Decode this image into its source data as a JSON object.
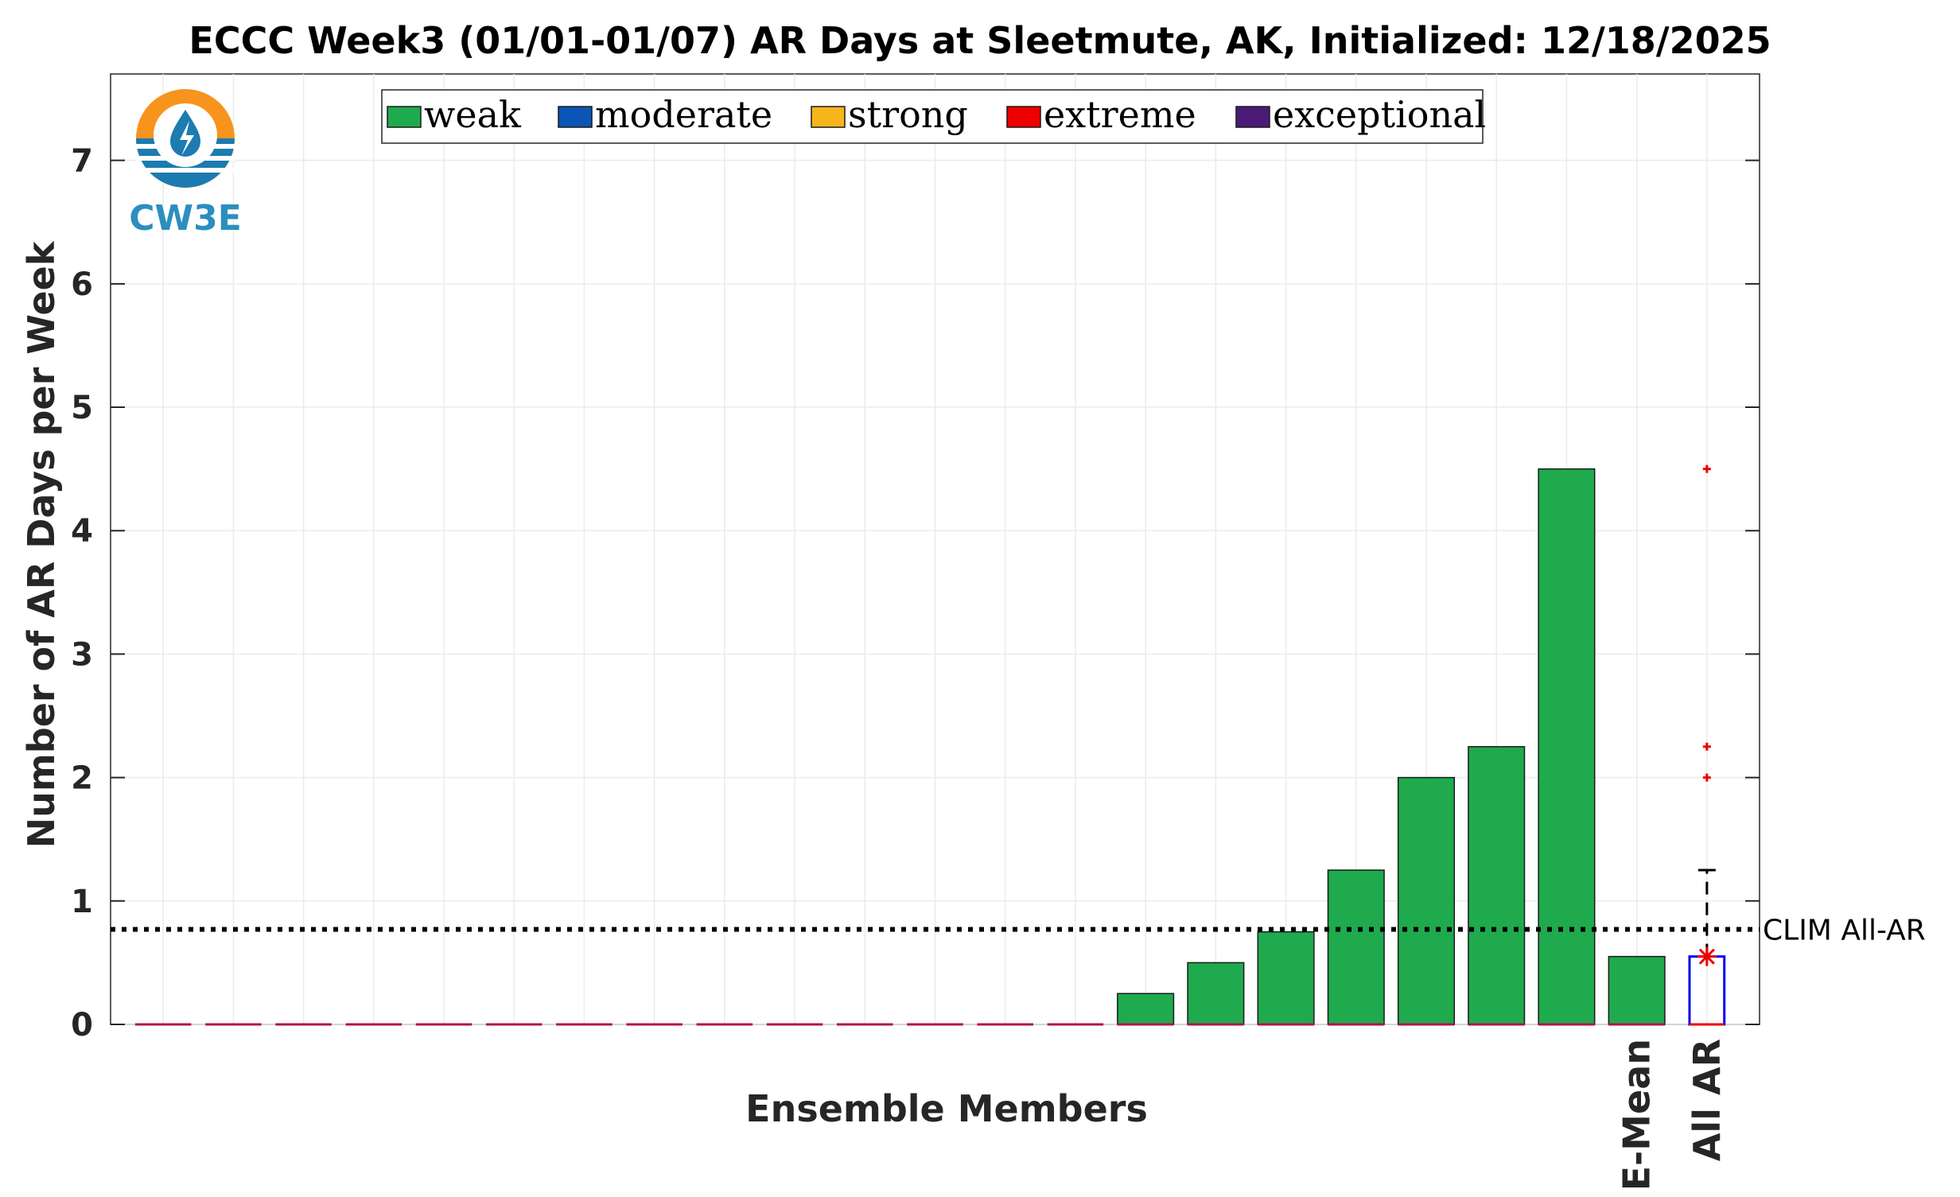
{
  "logo": {
    "text": "CW3E",
    "ring_color": "#f7941d",
    "wave_color": "#1c7bb0"
  },
  "chart_data": {
    "type": "bar",
    "title": "ECCC Week3 (01/01-01/07) AR Days at Sleetmute, AK, Initialized: 12/18/2025",
    "xlabel": "Ensemble Members",
    "ylabel": "Number of AR Days per Week",
    "ylim": [
      0,
      7.7
    ],
    "yticks": [
      0,
      1,
      2,
      3,
      4,
      5,
      6,
      7
    ],
    "grid": true,
    "legend_position": "top",
    "legend": [
      {
        "name": "weak",
        "color": "#1faa4e"
      },
      {
        "name": "moderate",
        "color": "#0a55b5"
      },
      {
        "name": "strong",
        "color": "#f6b51b"
      },
      {
        "name": "extreme",
        "color": "#ee0000"
      },
      {
        "name": "exceptional",
        "color": "#4b1a78"
      }
    ],
    "member_values": [
      0,
      0,
      0,
      0,
      0,
      0,
      0,
      0,
      0,
      0,
      0,
      0,
      0,
      0,
      0.25,
      0.5,
      0.75,
      1.25,
      2,
      2.25,
      4.5
    ],
    "emean_label": "E-Mean",
    "emean_value": 0.55,
    "allar_label": "All AR",
    "allar_box": {
      "q1": 0,
      "median": 0,
      "q3": 0.55,
      "whisker_high": 1.25
    },
    "allar_mean": 0.55,
    "allar_outliers": [
      2,
      2.25,
      4.5
    ],
    "clim_label": "CLIM All-AR",
    "clim_value": 0.77
  }
}
